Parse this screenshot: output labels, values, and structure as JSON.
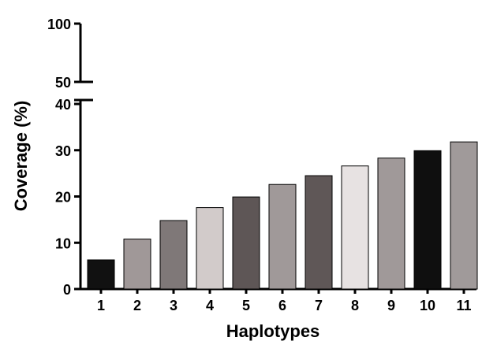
{
  "chart_data": {
    "type": "bar",
    "categories": [
      "1",
      "2",
      "3",
      "4",
      "5",
      "6",
      "7",
      "8",
      "9",
      "10",
      "11"
    ],
    "values": [
      6.3,
      10.8,
      14.8,
      17.6,
      19.9,
      22.6,
      24.5,
      26.6,
      28.3,
      29.9,
      31.8
    ],
    "bar_colors": [
      "#111111",
      "#a09898",
      "#7f7878",
      "#d2cbca",
      "#5e5656",
      "#a09999",
      "#5f5757",
      "#e7e2e2",
      "#a09999",
      "#0f0f0f",
      "#a09a9a"
    ],
    "xlabel": "Haplotypes",
    "ylabel": "Coverage (%)",
    "axis_break": {
      "lower_range": [
        0,
        40
      ],
      "upper_range": [
        50,
        100
      ]
    },
    "yticks_lower": [
      "0",
      "10",
      "20",
      "30",
      "40"
    ],
    "yticks_upper": [
      "50",
      "100"
    ],
    "grid": false,
    "legend": "none"
  }
}
